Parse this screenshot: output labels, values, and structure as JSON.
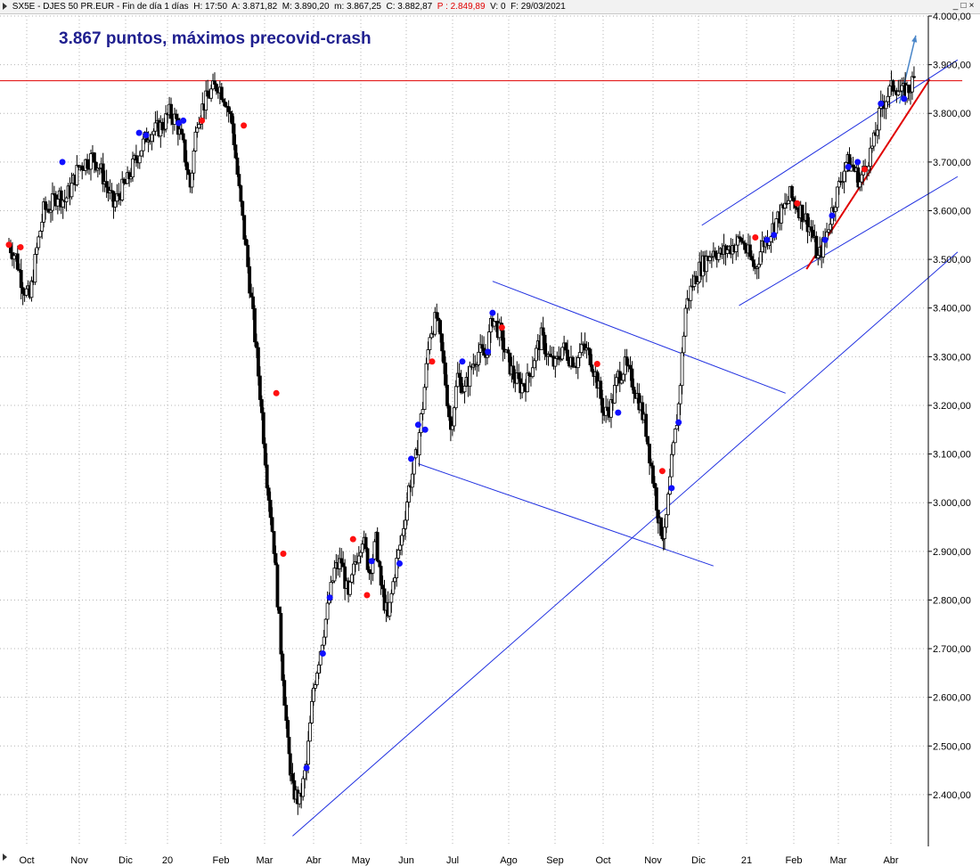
{
  "header": {
    "symbol_info": "SX5E - DJES 50 PR.EUR - Fin de día 1 días",
    "h": "H: 17:50",
    "a": "A: 3.871,82",
    "m_upper": "M: 3.890,20",
    "m_lower": "m: 3.867,25",
    "c": "C: 3.882,87",
    "p": "P : 2.849,89",
    "v": "V: 0",
    "f": "F: 29/03/2021",
    "window_controls": [
      "_",
      "□",
      "×"
    ]
  },
  "colors": {
    "candle": "#000000",
    "grid": "#b4b4b4",
    "resistance": "#e00000",
    "trendline": "#2030e0",
    "bull_dot": "#1010ff",
    "bear_dot": "#ff1010",
    "title": "#1f1f8f",
    "arrow": "#4a86c8"
  },
  "chart_data": {
    "type": "line",
    "title": "3.867 puntos, máximos precovid-crash",
    "xlabel": "",
    "ylabel": "",
    "y_ticks": [
      "4.000,00",
      "3.900,00",
      "3.800,00",
      "3.700,00",
      "3.600,00",
      "3.500,00",
      "3.400,00",
      "3.300,00",
      "3.200,00",
      "3.100,00",
      "3.000,00",
      "2.900,00",
      "2.800,00",
      "2.700,00",
      "2.600,00",
      "2.500,00",
      "2.400,00"
    ],
    "x_ticks": [
      "Oct",
      "Nov",
      "Dic",
      "20",
      "Feb",
      "Mar",
      "Abr",
      "May",
      "Jun",
      "Jul",
      "Ago",
      "Sep",
      "Oct",
      "Nov",
      "Dic",
      "21",
      "Feb",
      "Mar",
      "Abr"
    ],
    "grid": true,
    "axis_position": "right",
    "series": [
      {
        "points": [
          [
            0,
            3530
          ],
          [
            0.3,
            3505
          ],
          [
            0.6,
            3445
          ],
          [
            0.9,
            3420
          ],
          [
            1.2,
            3520
          ],
          [
            1.5,
            3600
          ],
          [
            1.8,
            3610
          ],
          [
            2.1,
            3635
          ],
          [
            2.4,
            3620
          ],
          [
            2.7,
            3650
          ],
          [
            3.0,
            3690
          ],
          [
            3.3,
            3700
          ],
          [
            3.6,
            3710
          ],
          [
            3.9,
            3690
          ],
          [
            4.2,
            3650
          ],
          [
            4.5,
            3610
          ],
          [
            4.8,
            3640
          ],
          [
            5.1,
            3660
          ],
          [
            5.4,
            3700
          ],
          [
            5.7,
            3730
          ],
          [
            6.0,
            3760
          ],
          [
            6.3,
            3765
          ],
          [
            6.6,
            3775
          ],
          [
            6.9,
            3800
          ],
          [
            7.2,
            3785
          ],
          [
            7.5,
            3730
          ],
          [
            7.8,
            3650
          ],
          [
            8.1,
            3790
          ],
          [
            8.4,
            3820
          ],
          [
            8.7,
            3845
          ],
          [
            9.0,
            3860
          ],
          [
            9.3,
            3830
          ],
          [
            9.6,
            3780
          ],
          [
            9.9,
            3640
          ],
          [
            10.2,
            3520
          ],
          [
            10.5,
            3380
          ],
          [
            10.8,
            3225
          ],
          [
            11.1,
            3050
          ],
          [
            11.4,
            2910
          ],
          [
            11.7,
            2700
          ],
          [
            12.0,
            2500
          ],
          [
            12.2,
            2410
          ],
          [
            12.5,
            2385
          ],
          [
            12.8,
            2460
          ],
          [
            13.1,
            2620
          ],
          [
            13.4,
            2700
          ],
          [
            13.7,
            2780
          ],
          [
            14.0,
            2860
          ],
          [
            14.3,
            2880
          ],
          [
            14.6,
            2800
          ],
          [
            14.9,
            2880
          ],
          [
            15.2,
            2930
          ],
          [
            15.5,
            2860
          ],
          [
            15.8,
            2920
          ],
          [
            16.0,
            2830
          ],
          [
            16.3,
            2760
          ],
          [
            16.6,
            2860
          ],
          [
            16.9,
            2930
          ],
          [
            17.2,
            3030
          ],
          [
            17.5,
            3090
          ],
          [
            17.8,
            3200
          ],
          [
            18.1,
            3350
          ],
          [
            18.4,
            3380
          ],
          [
            18.7,
            3280
          ],
          [
            19.0,
            3150
          ],
          [
            19.3,
            3260
          ],
          [
            19.6,
            3230
          ],
          [
            19.9,
            3280
          ],
          [
            20.2,
            3310
          ],
          [
            20.5,
            3300
          ],
          [
            20.8,
            3380
          ],
          [
            21.1,
            3350
          ],
          [
            21.4,
            3300
          ],
          [
            21.7,
            3260
          ],
          [
            22.0,
            3240
          ],
          [
            22.3,
            3250
          ],
          [
            22.6,
            3300
          ],
          [
            22.9,
            3340
          ],
          [
            23.2,
            3300
          ],
          [
            23.5,
            3280
          ],
          [
            23.8,
            3320
          ],
          [
            24.1,
            3300
          ],
          [
            24.4,
            3290
          ],
          [
            24.7,
            3320
          ],
          [
            25.0,
            3300
          ],
          [
            25.3,
            3250
          ],
          [
            25.6,
            3180
          ],
          [
            25.9,
            3200
          ],
          [
            26.2,
            3260
          ],
          [
            26.5,
            3280
          ],
          [
            26.8,
            3250
          ],
          [
            27.1,
            3210
          ],
          [
            27.4,
            3150
          ],
          [
            27.7,
            3050
          ],
          [
            28.0,
            2950
          ],
          [
            28.2,
            2930
          ],
          [
            28.5,
            3080
          ],
          [
            28.8,
            3200
          ],
          [
            29.1,
            3400
          ],
          [
            29.4,
            3450
          ],
          [
            29.7,
            3480
          ],
          [
            30.0,
            3500
          ],
          [
            30.3,
            3520
          ],
          [
            30.6,
            3510
          ],
          [
            30.9,
            3520
          ],
          [
            31.2,
            3530
          ],
          [
            31.5,
            3540
          ],
          [
            31.8,
            3510
          ],
          [
            32.1,
            3480
          ],
          [
            32.4,
            3530
          ],
          [
            32.7,
            3550
          ],
          [
            33.0,
            3580
          ],
          [
            33.3,
            3600
          ],
          [
            33.6,
            3630
          ],
          [
            33.9,
            3610
          ],
          [
            34.2,
            3590
          ],
          [
            34.5,
            3560
          ],
          [
            34.8,
            3500
          ],
          [
            35.1,
            3540
          ],
          [
            35.4,
            3600
          ],
          [
            35.7,
            3650
          ],
          [
            36.0,
            3700
          ],
          [
            36.3,
            3690
          ],
          [
            36.6,
            3660
          ],
          [
            36.9,
            3700
          ],
          [
            37.2,
            3740
          ],
          [
            37.5,
            3810
          ],
          [
            37.8,
            3840
          ],
          [
            38.1,
            3860
          ],
          [
            38.4,
            3840
          ],
          [
            38.7,
            3850
          ],
          [
            39.0,
            3875
          ]
        ]
      }
    ],
    "bull_markers": [
      [
        2.3,
        3700
      ],
      [
        5.6,
        3760
      ],
      [
        5.9,
        3755
      ],
      [
        7.3,
        3780
      ],
      [
        7.5,
        3785
      ],
      [
        12.8,
        2455
      ],
      [
        13.5,
        2690
      ],
      [
        13.8,
        2805
      ],
      [
        15.6,
        2880
      ],
      [
        16.8,
        2875
      ],
      [
        17.3,
        3090
      ],
      [
        17.6,
        3160
      ],
      [
        17.9,
        3150
      ],
      [
        19.5,
        3290
      ],
      [
        20.6,
        3310
      ],
      [
        20.8,
        3390
      ],
      [
        26.2,
        3185
      ],
      [
        28.5,
        3030
      ],
      [
        28.8,
        3165
      ],
      [
        32.6,
        3540
      ],
      [
        32.9,
        3550
      ],
      [
        35.1,
        3540
      ],
      [
        35.4,
        3590
      ],
      [
        36.1,
        3690
      ],
      [
        36.5,
        3700
      ],
      [
        37.5,
        3820
      ],
      [
        38.5,
        3830
      ]
    ],
    "bear_markers": [
      [
        0,
        3530
      ],
      [
        0.5,
        3525
      ],
      [
        8.3,
        3785
      ],
      [
        10.1,
        3775
      ],
      [
        11.5,
        3225
      ],
      [
        11.8,
        2895
      ],
      [
        14.8,
        2925
      ],
      [
        15.4,
        2810
      ],
      [
        18.2,
        3290
      ],
      [
        21.2,
        3360
      ],
      [
        25.3,
        3285
      ],
      [
        28.1,
        3065
      ],
      [
        32.1,
        3545
      ],
      [
        33.9,
        3615
      ],
      [
        36.8,
        3685
      ]
    ],
    "annotation_lines": [
      {
        "name": "resistance",
        "color": "#e00000",
        "from": [
          -1,
          3867
        ],
        "to": [
          41,
          3867
        ],
        "width": 1
      },
      {
        "name": "long-trendline",
        "color": "#2030e0",
        "from": [
          12.2,
          2315
        ],
        "to": [
          40.8,
          3515
        ],
        "width": 1
      },
      {
        "name": "channel-upper",
        "color": "#2030e0",
        "from": [
          20.8,
          3455
        ],
        "to": [
          33.4,
          3225
        ],
        "width": 1
      },
      {
        "name": "channel-lower",
        "color": "#2030e0",
        "from": [
          17.6,
          3080
        ],
        "to": [
          30.3,
          2870
        ],
        "width": 1
      },
      {
        "name": "wedge-upper",
        "color": "#2030e0",
        "from": [
          29.8,
          3570
        ],
        "to": [
          40.8,
          3910
        ],
        "width": 1
      },
      {
        "name": "wedge-lower",
        "color": "#2030e0",
        "from": [
          31.4,
          3405
        ],
        "to": [
          40.8,
          3670
        ],
        "width": 1
      },
      {
        "name": "red-support",
        "color": "#e00000",
        "from": [
          34.3,
          3480
        ],
        "to": [
          39.6,
          3870
        ],
        "width": 2
      }
    ],
    "arrow": {
      "from": [
        38.3,
        3820
      ],
      "to": [
        39.0,
        3960
      ]
    }
  }
}
